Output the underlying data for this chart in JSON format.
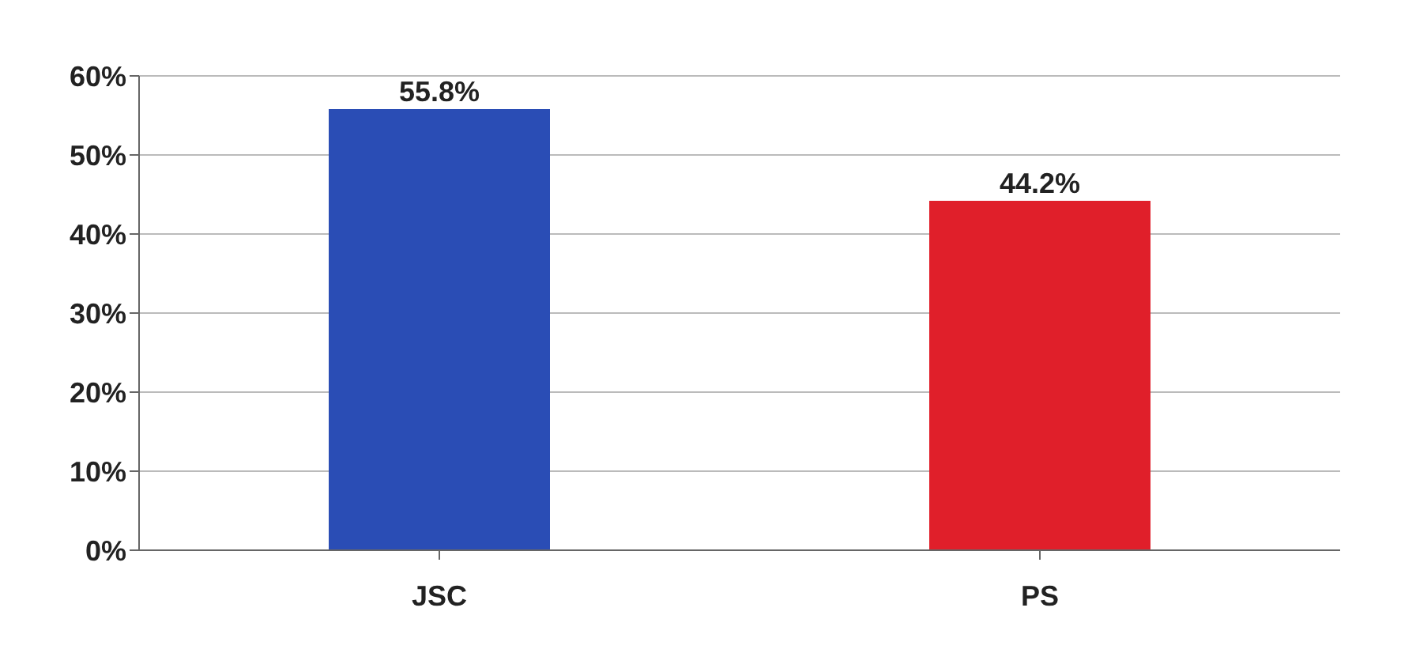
{
  "chart_data": {
    "type": "bar",
    "categories": [
      "JSC",
      "PS"
    ],
    "values": [
      55.8,
      44.2
    ],
    "colors": [
      "#2a4db5",
      "#e01f2a"
    ],
    "value_labels": [
      "55.8%",
      "44.2%"
    ],
    "ylim": [
      0,
      60
    ],
    "yticks": [
      {
        "value": 0,
        "label": "0%"
      },
      {
        "value": 10,
        "label": "10%"
      },
      {
        "value": 20,
        "label": "20%"
      },
      {
        "value": 30,
        "label": "30%"
      },
      {
        "value": 40,
        "label": "40%"
      },
      {
        "value": 50,
        "label": "50%"
      },
      {
        "value": 60,
        "label": "60%"
      }
    ],
    "grid": "y"
  }
}
